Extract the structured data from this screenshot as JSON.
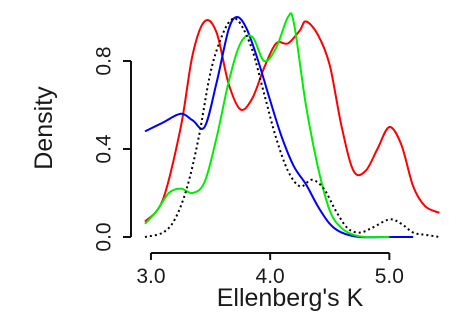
{
  "chart_data": {
    "type": "line",
    "title": "",
    "xlabel": "Ellenberg's K",
    "ylabel": "Density",
    "xlim": [
      2.95,
      5.45
    ],
    "ylim": [
      0.0,
      1.0
    ],
    "xticks": [
      {
        "value": 3.0,
        "label": "3.0"
      },
      {
        "value": 4.0,
        "label": "4.0"
      },
      {
        "value": 5.0,
        "label": "5.0"
      }
    ],
    "yticks": [
      {
        "value": 0.0,
        "label": "0.0"
      },
      {
        "value": 0.4,
        "label": "0.4"
      },
      {
        "value": 0.8,
        "label": "0.8"
      }
    ],
    "grid": false,
    "legend": "none",
    "series": [
      {
        "color": "#ff0000",
        "style": "solid",
        "points": [
          [
            2.95,
            0.07
          ],
          [
            3.1,
            0.17
          ],
          [
            3.25,
            0.5
          ],
          [
            3.35,
            0.83
          ],
          [
            3.45,
            0.98
          ],
          [
            3.55,
            0.93
          ],
          [
            3.65,
            0.7
          ],
          [
            3.75,
            0.58
          ],
          [
            3.85,
            0.63
          ],
          [
            3.95,
            0.77
          ],
          [
            4.05,
            0.88
          ],
          [
            4.15,
            0.88
          ],
          [
            4.25,
            0.94
          ],
          [
            4.3,
            0.98
          ],
          [
            4.4,
            0.92
          ],
          [
            4.5,
            0.78
          ],
          [
            4.6,
            0.5
          ],
          [
            4.7,
            0.3
          ],
          [
            4.8,
            0.3
          ],
          [
            4.9,
            0.4
          ],
          [
            5.0,
            0.5
          ],
          [
            5.1,
            0.42
          ],
          [
            5.2,
            0.23
          ],
          [
            5.3,
            0.14
          ],
          [
            5.42,
            0.11
          ]
        ]
      },
      {
        "color": "#0000ff",
        "style": "solid",
        "points": [
          [
            2.95,
            0.48
          ],
          [
            3.1,
            0.52
          ],
          [
            3.25,
            0.56
          ],
          [
            3.35,
            0.53
          ],
          [
            3.45,
            0.5
          ],
          [
            3.55,
            0.7
          ],
          [
            3.65,
            0.94
          ],
          [
            3.72,
            1.0
          ],
          [
            3.8,
            0.95
          ],
          [
            3.9,
            0.8
          ],
          [
            4.0,
            0.62
          ],
          [
            4.1,
            0.45
          ],
          [
            4.2,
            0.32
          ],
          [
            4.3,
            0.24
          ],
          [
            4.4,
            0.14
          ],
          [
            4.5,
            0.06
          ],
          [
            4.6,
            0.02
          ],
          [
            4.75,
            0.0
          ],
          [
            5.0,
            0.0
          ],
          [
            5.2,
            0.0
          ]
        ]
      },
      {
        "color": "#00ee00",
        "style": "solid",
        "points": [
          [
            2.95,
            0.06
          ],
          [
            3.05,
            0.12
          ],
          [
            3.15,
            0.2
          ],
          [
            3.25,
            0.22
          ],
          [
            3.35,
            0.2
          ],
          [
            3.45,
            0.25
          ],
          [
            3.55,
            0.45
          ],
          [
            3.65,
            0.7
          ],
          [
            3.75,
            0.88
          ],
          [
            3.85,
            0.91
          ],
          [
            3.95,
            0.8
          ],
          [
            4.05,
            0.86
          ],
          [
            4.15,
            1.0
          ],
          [
            4.2,
            0.97
          ],
          [
            4.3,
            0.6
          ],
          [
            4.4,
            0.32
          ],
          [
            4.5,
            0.12
          ],
          [
            4.6,
            0.04
          ],
          [
            4.7,
            0.01
          ],
          [
            4.8,
            0.0
          ],
          [
            5.0,
            0.0
          ]
        ]
      },
      {
        "color": "#000000",
        "style": "dotted",
        "points": [
          [
            2.95,
            0.0
          ],
          [
            3.1,
            0.02
          ],
          [
            3.2,
            0.08
          ],
          [
            3.3,
            0.22
          ],
          [
            3.4,
            0.45
          ],
          [
            3.5,
            0.75
          ],
          [
            3.6,
            0.92
          ],
          [
            3.68,
            0.99
          ],
          [
            3.75,
            0.97
          ],
          [
            3.85,
            0.85
          ],
          [
            3.95,
            0.65
          ],
          [
            4.05,
            0.45
          ],
          [
            4.15,
            0.3
          ],
          [
            4.25,
            0.23
          ],
          [
            4.35,
            0.26
          ],
          [
            4.45,
            0.22
          ],
          [
            4.55,
            0.12
          ],
          [
            4.65,
            0.04
          ],
          [
            4.75,
            0.02
          ],
          [
            4.85,
            0.04
          ],
          [
            5.0,
            0.08
          ],
          [
            5.1,
            0.06
          ],
          [
            5.2,
            0.02
          ],
          [
            5.3,
            0.01
          ],
          [
            5.42,
            0.0
          ]
        ]
      }
    ]
  }
}
